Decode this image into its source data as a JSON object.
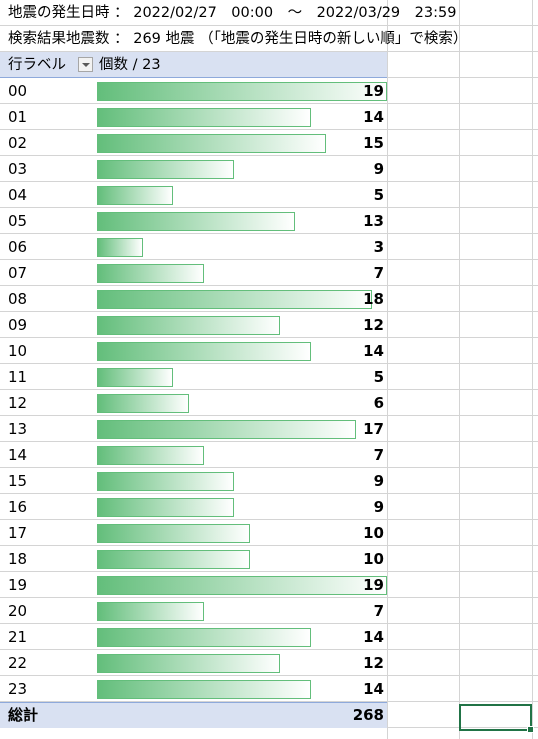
{
  "info": {
    "line1": "地震の発生日時 ： 2022/02/27　00:00　～　2022/03/29　23:59",
    "line2": "検索結果地震数 ： 269 地震 （「地震の発生日時の新しい順」で検索）"
  },
  "pivot": {
    "row_label_header": "行ラベル",
    "count_header": "個数 / 23",
    "total_label": "総計",
    "total_value": "268",
    "max_value": 19,
    "rows": [
      {
        "label": "00",
        "value": 19
      },
      {
        "label": "01",
        "value": 14
      },
      {
        "label": "02",
        "value": 15
      },
      {
        "label": "03",
        "value": 9
      },
      {
        "label": "04",
        "value": 5
      },
      {
        "label": "05",
        "value": 13
      },
      {
        "label": "06",
        "value": 3
      },
      {
        "label": "07",
        "value": 7
      },
      {
        "label": "08",
        "value": 18
      },
      {
        "label": "09",
        "value": 12
      },
      {
        "label": "10",
        "value": 14
      },
      {
        "label": "11",
        "value": 5
      },
      {
        "label": "12",
        "value": 6
      },
      {
        "label": "13",
        "value": 17
      },
      {
        "label": "14",
        "value": 7
      },
      {
        "label": "15",
        "value": 9
      },
      {
        "label": "16",
        "value": 9
      },
      {
        "label": "17",
        "value": 10
      },
      {
        "label": "18",
        "value": 10
      },
      {
        "label": "19",
        "value": 19
      },
      {
        "label": "20",
        "value": 7
      },
      {
        "label": "21",
        "value": 14
      },
      {
        "label": "22",
        "value": 12
      },
      {
        "label": "23",
        "value": 14
      }
    ]
  },
  "colors": {
    "databar": "#63be7b",
    "header_fill": "#d9e1f2",
    "selection": "#217346"
  }
}
